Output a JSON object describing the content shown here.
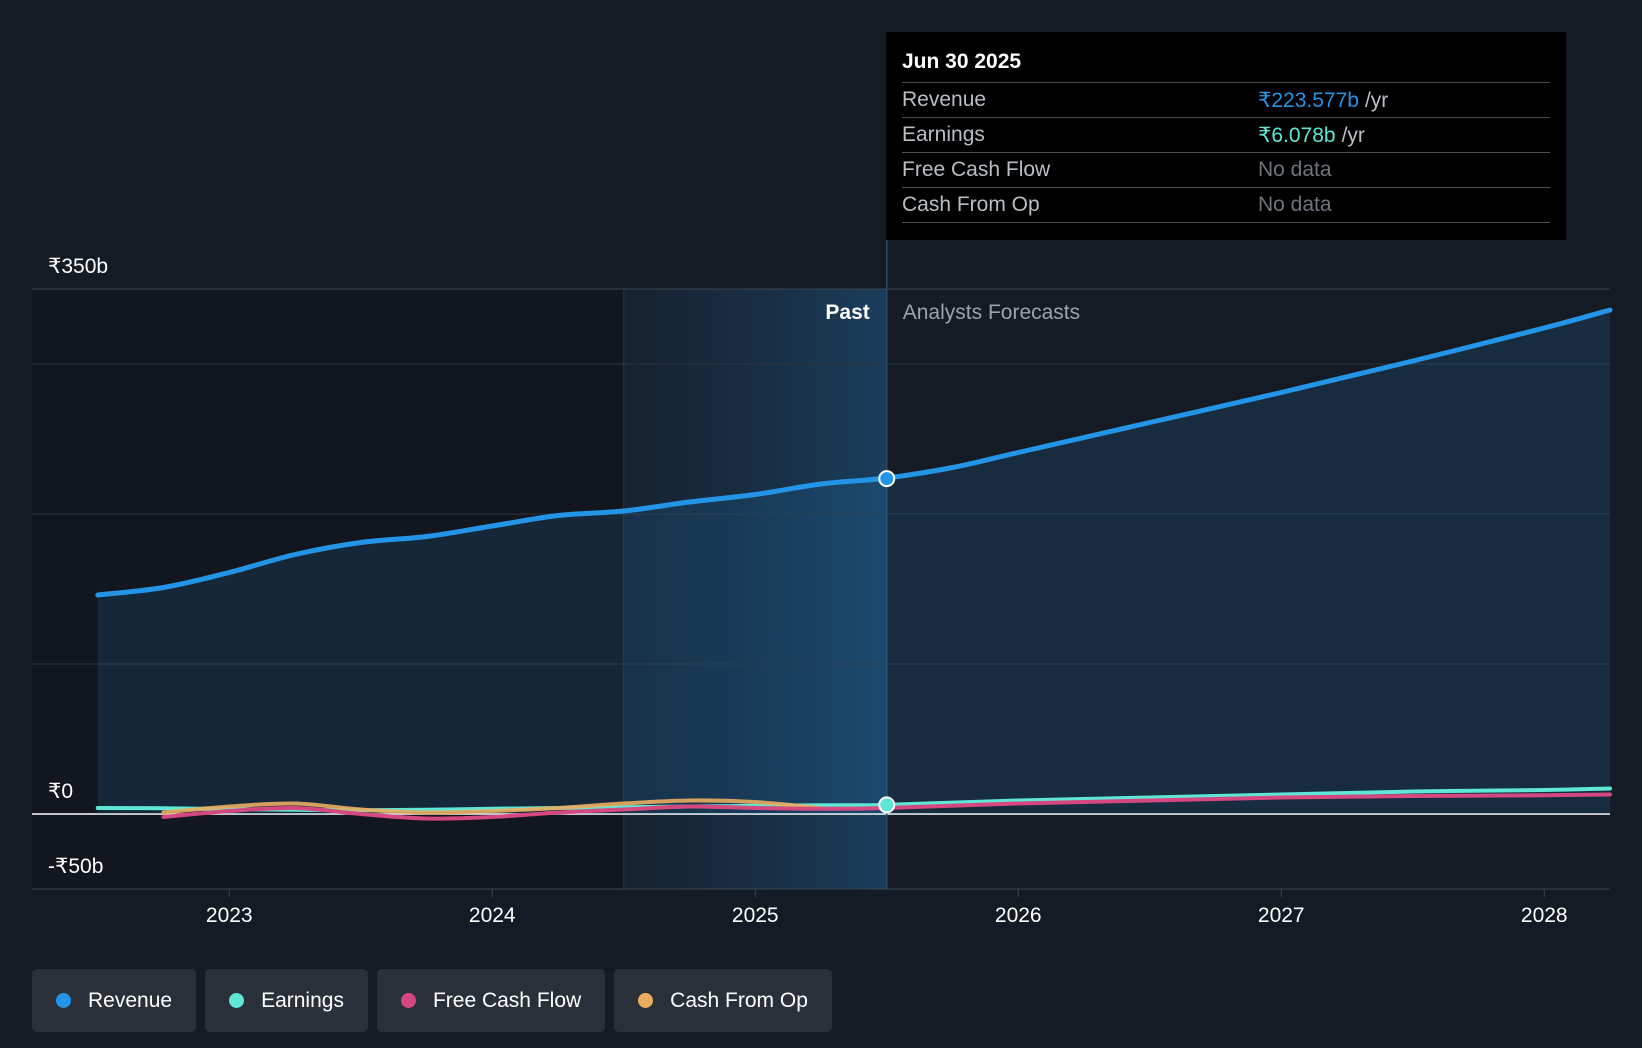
{
  "colors": {
    "background": "#151b24",
    "revenue": "#2394e6",
    "earnings": "#5ee6d6",
    "free_cash_flow": "#d4477f",
    "cash_from_op": "#e9ad5f"
  },
  "tooltip": {
    "date": "Jun 30 2025",
    "rows": [
      {
        "label": "Revenue",
        "value": "₹223.577b",
        "unit": "/yr",
        "color": "#2394e6"
      },
      {
        "label": "Earnings",
        "value": "₹6.078b",
        "unit": "/yr",
        "color": "#5ee6d6"
      },
      {
        "label": "Free Cash Flow",
        "value": "No data"
      },
      {
        "label": "Cash From Op",
        "value": "No data"
      }
    ]
  },
  "legend": [
    {
      "label": "Revenue",
      "color": "#2394e6"
    },
    {
      "label": "Earnings",
      "color": "#5ee6d6"
    },
    {
      "label": "Free Cash Flow",
      "color": "#d4477f"
    },
    {
      "label": "Cash From Op",
      "color": "#e9ad5f"
    }
  ],
  "chart_data": {
    "type": "area",
    "title": "",
    "xlabel": "",
    "ylabel": "",
    "y_tick_labels": [
      {
        "value": 350,
        "label": "₹350b"
      },
      {
        "value": 0,
        "label": "₹0"
      },
      {
        "value": -50,
        "label": "-₹50b"
      }
    ],
    "x_tick_labels": [
      {
        "value": 2023.0,
        "label": "2023"
      },
      {
        "value": 2024.0,
        "label": "2024"
      },
      {
        "value": 2025.0,
        "label": "2025"
      },
      {
        "value": 2026.0,
        "label": "2026"
      },
      {
        "value": 2027.0,
        "label": "2027"
      },
      {
        "value": 2028.0,
        "label": "2028"
      }
    ],
    "xlim": [
      2022.25,
      2028.25
    ],
    "ylim": [
      -50,
      350
    ],
    "gridlines_y": [
      300,
      200,
      100
    ],
    "past_label": "Past",
    "forecast_label": "Analysts Forecasts",
    "divider_x": 2025.5,
    "past_highlight_start": 2024.5,
    "series": [
      {
        "name": "Revenue",
        "color": "#2394e6",
        "fill": true,
        "x": [
          2022.5,
          2022.75,
          2023.0,
          2023.25,
          2023.5,
          2023.75,
          2024.0,
          2024.25,
          2024.5,
          2024.75,
          2025.0,
          2025.25,
          2025.5,
          2025.75,
          2026.0,
          2026.5,
          2027.0,
          2027.5,
          2028.0,
          2028.25
        ],
        "values": [
          146,
          151,
          161,
          173,
          181,
          185,
          192,
          199,
          202,
          208,
          213,
          220,
          224,
          231,
          241,
          261,
          281,
          302,
          324,
          336
        ]
      },
      {
        "name": "Earnings",
        "color": "#5ee6d6",
        "fill": false,
        "x": [
          2022.5,
          2022.75,
          2023.0,
          2023.25,
          2023.5,
          2023.75,
          2024.0,
          2024.25,
          2024.5,
          2024.75,
          2025.0,
          2025.25,
          2025.5,
          2026.0,
          2026.5,
          2027.0,
          2027.5,
          2028.0,
          2028.25
        ],
        "values": [
          4,
          3.8,
          3.2,
          2.8,
          2.5,
          2.8,
          3.5,
          4.0,
          4.5,
          5.0,
          5.4,
          5.8,
          6.1,
          9,
          11,
          13,
          15,
          16,
          17
        ]
      },
      {
        "name": "Free Cash Flow",
        "color": "#d4477f",
        "fill": false,
        "x": [
          2022.75,
          2023.0,
          2023.25,
          2023.5,
          2023.75,
          2024.0,
          2024.25,
          2024.5,
          2024.75,
          2025.0,
          2025.25,
          2025.5,
          2026.0,
          2026.5,
          2027.0,
          2027.5,
          2028.0,
          2028.25
        ],
        "values": [
          -2,
          2,
          4,
          0,
          -3,
          -2,
          1,
          3,
          5,
          4,
          3.5,
          4,
          7,
          9,
          11,
          12,
          12.5,
          13
        ]
      },
      {
        "name": "Cash From Op",
        "color": "#e9ad5f",
        "fill": false,
        "x": [
          2022.75,
          2023.0,
          2023.25,
          2023.5,
          2023.75,
          2024.0,
          2024.25,
          2024.5,
          2024.75,
          2025.0,
          2025.25
        ],
        "values": [
          1,
          5,
          7,
          3,
          1,
          2,
          4,
          7,
          9,
          8,
          4
        ]
      }
    ],
    "highlighted_points": [
      {
        "series": "Revenue",
        "x": 2025.5,
        "value": 223.577
      },
      {
        "series": "Earnings",
        "x": 2025.5,
        "value": 6.078
      }
    ]
  }
}
